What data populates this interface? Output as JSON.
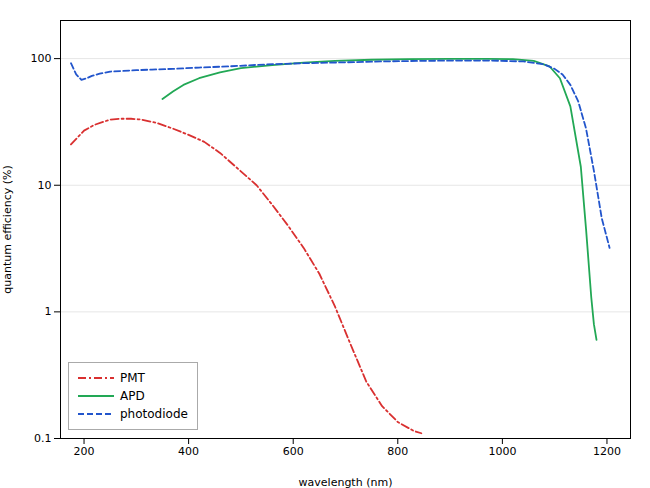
{
  "chart_data": {
    "type": "line",
    "xlabel": "wavelength (nm)",
    "ylabel": "quantum efficiency (%)",
    "xlim": [
      155,
      1245
    ],
    "ylim": [
      0.1,
      200
    ],
    "xticks": [
      200,
      400,
      600,
      800,
      1000,
      1200
    ],
    "yticks": [
      0.1,
      1,
      10,
      100
    ],
    "log": "y",
    "grid": "y",
    "legend": "lower left",
    "series": [
      {
        "name": "PMT",
        "color": "#d93030",
        "line_style": "dashdot",
        "x": [
          175,
          200,
          220,
          250,
          270,
          290,
          310,
          340,
          370,
          400,
          430,
          460,
          490,
          530,
          560,
          590,
          620,
          650,
          680,
          710,
          740,
          770,
          800,
          830,
          845
        ],
        "values": [
          21,
          27,
          30,
          33,
          33.5,
          33.5,
          33,
          31,
          28,
          25,
          22,
          18,
          14,
          10,
          7.0,
          4.8,
          3.2,
          2.0,
          1.1,
          0.55,
          0.28,
          0.18,
          0.135,
          0.115,
          0.11
        ]
      },
      {
        "name": "APD",
        "color": "#22a855",
        "line_style": "solid",
        "x": [
          350,
          370,
          390,
          420,
          460,
          500,
          560,
          620,
          680,
          750,
          820,
          900,
          970,
          1020,
          1060,
          1090,
          1110,
          1130,
          1150,
          1160,
          1170,
          1175,
          1180
        ],
        "values": [
          48,
          55,
          62,
          70,
          78,
          84,
          89,
          93,
          96,
          98,
          99,
          99.5,
          99.5,
          99,
          96,
          87,
          70,
          42,
          14,
          4.5,
          1.3,
          0.8,
          0.6
        ]
      },
      {
        "name": "photodiode",
        "color": "#2255cc",
        "line_style": "dashed",
        "x": [
          175,
          185,
          195,
          205,
          215,
          230,
          250,
          275,
          300,
          330,
          370,
          420,
          480,
          550,
          620,
          700,
          770,
          840,
          910,
          980,
          1040,
          1080,
          1100,
          1115,
          1130,
          1145,
          1160,
          1175,
          1190,
          1205
        ],
        "values": [
          92,
          75,
          68,
          70,
          73,
          76,
          79,
          80,
          81,
          82,
          83,
          85,
          87,
          90,
          92,
          93.5,
          95,
          96,
          96.5,
          96.5,
          95,
          90,
          83,
          75,
          62,
          46,
          28,
          13,
          5.5,
          3.2
        ]
      }
    ]
  }
}
